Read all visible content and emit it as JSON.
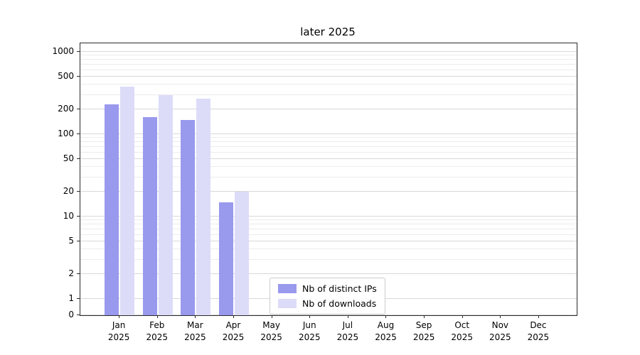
{
  "title": "later 2025",
  "chart_data": {
    "type": "bar",
    "title": "later 2025",
    "categories": [
      "Jan 2025",
      "Feb 2025",
      "Mar 2025",
      "Apr 2025",
      "May 2025",
      "Jun 2025",
      "Jul 2025",
      "Aug 2025",
      "Sep 2025",
      "Oct 2025",
      "Nov 2025",
      "Dec 2025"
    ],
    "series": [
      {
        "name": "Nb of distinct IPs",
        "color": "#9999ee",
        "values": [
          230,
          160,
          150,
          15,
          0,
          0,
          0,
          0,
          0,
          0,
          0,
          0
        ]
      },
      {
        "name": "Nb of downloads",
        "color": "#dcdcf8",
        "values": [
          380,
          300,
          270,
          20,
          0,
          0,
          0,
          0,
          0,
          0,
          0,
          0
        ]
      }
    ],
    "xlabel": "",
    "ylabel": "",
    "yscale": "symlog",
    "yticks": [
      0,
      1,
      2,
      5,
      10,
      20,
      50,
      100,
      200,
      500,
      1000
    ],
    "ylim": [
      0,
      1268
    ],
    "grid": true,
    "legend_position": "lower center"
  }
}
